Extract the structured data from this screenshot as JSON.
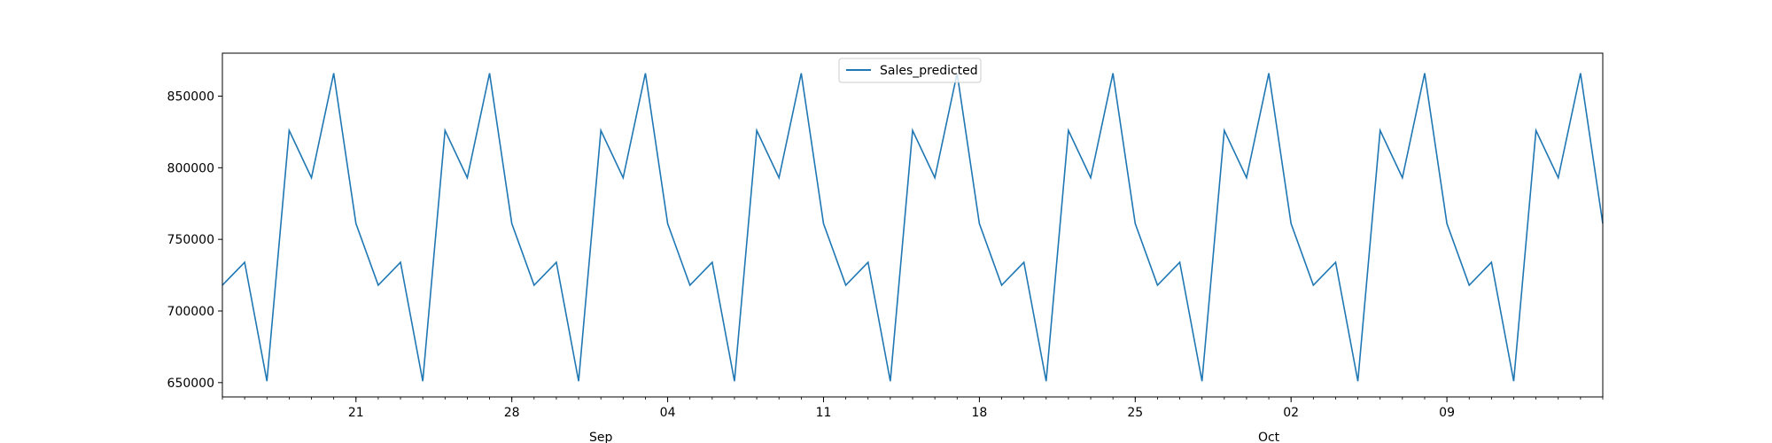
{
  "chart_data": {
    "type": "line",
    "title": "",
    "xlabel": "",
    "ylabel": "",
    "series": [
      {
        "name": "Sales_predicted",
        "color": "#1f77b4",
        "x": [
          "2023-08-15",
          "2023-08-16",
          "2023-08-17",
          "2023-08-18",
          "2023-08-19",
          "2023-08-20",
          "2023-08-21",
          "2023-08-22",
          "2023-08-23",
          "2023-08-24",
          "2023-08-25",
          "2023-08-26",
          "2023-08-27",
          "2023-08-28",
          "2023-08-29",
          "2023-08-30",
          "2023-08-31",
          "2023-09-01",
          "2023-09-02",
          "2023-09-03",
          "2023-09-04",
          "2023-09-05",
          "2023-09-06",
          "2023-09-07",
          "2023-09-08",
          "2023-09-09",
          "2023-09-10",
          "2023-09-11",
          "2023-09-12",
          "2023-09-13",
          "2023-09-14",
          "2023-09-15",
          "2023-09-16",
          "2023-09-17",
          "2023-09-18",
          "2023-09-19",
          "2023-09-20",
          "2023-09-21",
          "2023-09-22",
          "2023-09-23",
          "2023-09-24",
          "2023-09-25",
          "2023-09-26",
          "2023-09-27",
          "2023-09-28",
          "2023-09-29",
          "2023-09-30",
          "2023-10-01",
          "2023-10-02",
          "2023-10-03",
          "2023-10-04",
          "2023-10-05",
          "2023-10-06",
          "2023-10-07",
          "2023-10-08",
          "2023-10-09",
          "2023-10-10",
          "2023-10-11",
          "2023-10-12",
          "2023-10-13",
          "2023-10-14",
          "2023-10-15",
          "2023-10-16"
        ],
        "values": [
          718000,
          734000,
          651000,
          826000,
          793000,
          866000,
          761000,
          718000,
          734000,
          651000,
          826000,
          793000,
          866000,
          761000,
          718000,
          734000,
          651000,
          826000,
          793000,
          866000,
          761000,
          718000,
          734000,
          651000,
          826000,
          793000,
          866000,
          761000,
          718000,
          734000,
          651000,
          826000,
          793000,
          866000,
          761000,
          718000,
          734000,
          651000,
          826000,
          793000,
          866000,
          761000,
          718000,
          734000,
          651000,
          826000,
          793000,
          866000,
          761000,
          718000,
          734000,
          651000,
          826000,
          793000,
          866000,
          761000,
          718000,
          734000,
          651000,
          826000,
          793000,
          866000,
          761000
        ]
      }
    ],
    "xlim": [
      "2023-08-15",
      "2023-10-16"
    ],
    "ylim": [
      640000,
      880000
    ],
    "yticks": [
      650000,
      700000,
      750000,
      800000,
      850000
    ],
    "ytick_labels": [
      "650000",
      "700000",
      "750000",
      "800000",
      "850000"
    ],
    "xticks_major": [
      "2023-08-21",
      "2023-08-28",
      "2023-09-04",
      "2023-09-11",
      "2023-09-18",
      "2023-09-25",
      "2023-10-02",
      "2023-10-09"
    ],
    "xtick_labels": [
      "21",
      "28",
      "04",
      "11",
      "18",
      "25",
      "02",
      "09"
    ],
    "month_labels": [
      {
        "date": "2023-09-01",
        "label": "Sep"
      },
      {
        "date": "2023-10-01",
        "label": "Oct"
      }
    ],
    "legend": {
      "placement": "upper center",
      "entries": [
        "Sales_predicted"
      ]
    },
    "grid": false
  }
}
